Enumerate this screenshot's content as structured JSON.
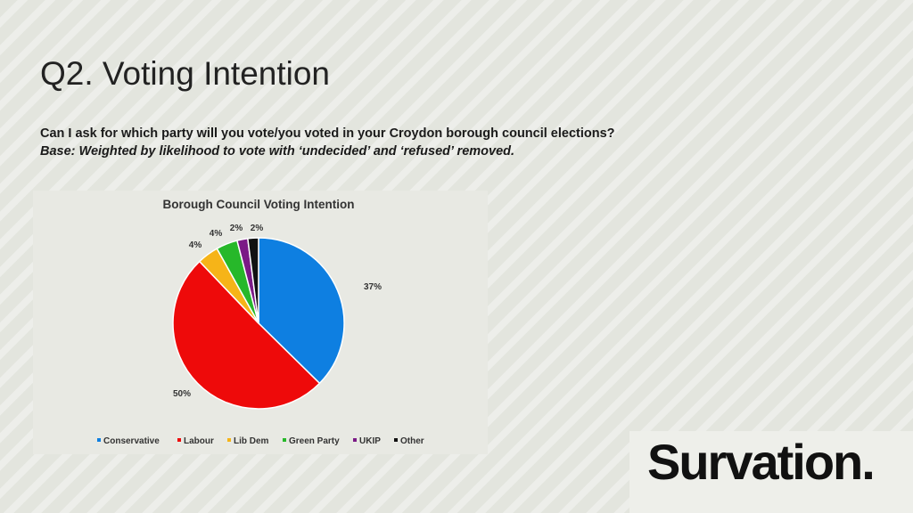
{
  "slide": {
    "title": "Q2. Voting Intention",
    "question": "Can I ask for which party will you vote/you voted in your Croydon borough council elections?",
    "base": "Base: Weighted by likelihood to vote with ‘undecided’ and ‘refused’ removed."
  },
  "logo": {
    "text": "Survation."
  },
  "chart_data": {
    "type": "pie",
    "title": "Borough Council Voting Intention",
    "legend_position": "bottom",
    "slices": [
      {
        "name": "Conservative",
        "value": 37,
        "label": "37%",
        "color": "#0e7fe1"
      },
      {
        "name": "Labour",
        "value": 50,
        "label": "50%",
        "color": "#ee0a0a"
      },
      {
        "name": "Lib Dem",
        "value": 4,
        "label": "4%",
        "color": "#f6b418"
      },
      {
        "name": "Green Party",
        "value": 4,
        "label": "4%",
        "color": "#27b82a"
      },
      {
        "name": "UKIP",
        "value": 2,
        "label": "2%",
        "color": "#7b1a86"
      },
      {
        "name": "Other",
        "value": 2,
        "label": "2%",
        "color": "#111111"
      }
    ]
  }
}
